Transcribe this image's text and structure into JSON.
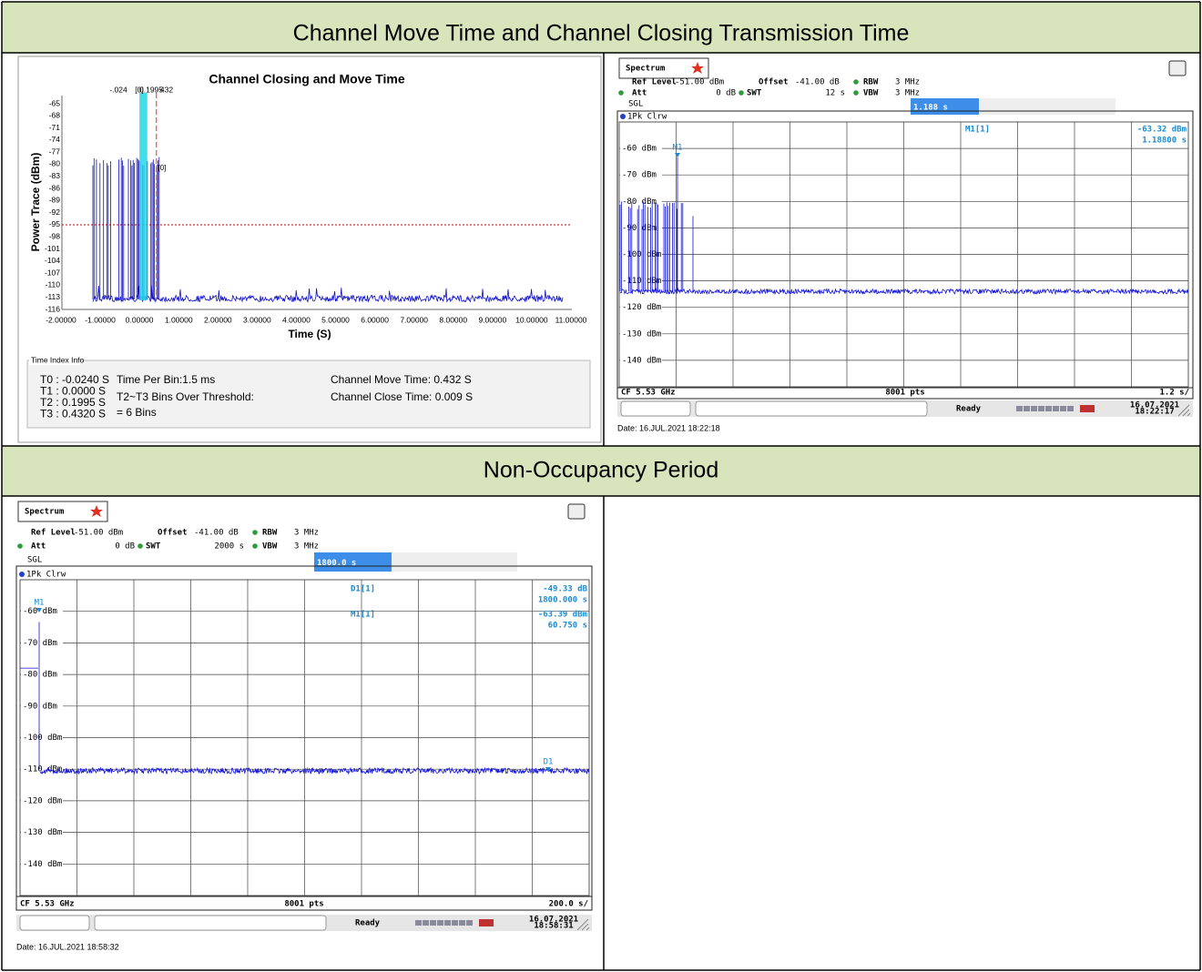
{
  "sections": [
    {
      "title": "Channel Move Time and Channel Closing Transmission Time"
    },
    {
      "title": "Non-Occupancy Period"
    }
  ],
  "closing_plot": {
    "title": "Channel Closing and Move Time",
    "cursor_labels": [
      "-.024",
      "[0]",
      "0.1995",
      "432"
    ],
    "cursor_note": "[0]",
    "y_axis_label": "Power Trace (dBm)",
    "x_axis_label": "Time (S)",
    "yticks": [
      "-65",
      "-68",
      "-71",
      "-74",
      "-77",
      "-80",
      "-83",
      "-86",
      "-89",
      "-92",
      "-95",
      "-98",
      "-101",
      "-104",
      "-107",
      "-110",
      "-113",
      "-116"
    ],
    "xticks": [
      "-2.00000",
      "-1.00000",
      "0.00000",
      "1.00000",
      "2.00000",
      "3.00000",
      "4.00000",
      "5.00000",
      "6.00000",
      "7.00000",
      "8.00000",
      "9.00000",
      "10.00000",
      "11.00000"
    ],
    "info": {
      "legend": "Time Index Info",
      "times": [
        "T0 : -0.0240  S",
        "T1 : 0.0000  S",
        "T2 : 0.1995  S",
        "T3 : 0.4320  S"
      ],
      "bin": "Time Per Bin:1.5 ms",
      "over": "T2~T3 Bins Over Threshold:",
      "bins": "= 6 Bins",
      "move": "Channel Move Time: 0.432  S",
      "close": "Channel Close Time: 0.009  S"
    }
  },
  "spectra": [
    {
      "tab": "Spectrum",
      "ref_label": "Ref Level",
      "ref": "-51.00 dBm",
      "offset_label": "Offset",
      "offset": "-41.00 dB",
      "rbw_label": "RBW",
      "rbw": "3 MHz",
      "att_label": "Att",
      "att": "0 dB",
      "swt_label": "SWT",
      "swt": "12 s",
      "vbw_label": "VBW",
      "vbw": "3 MHz",
      "mode": "SGL",
      "readout": "1.188 s",
      "trace": "1Pk Clrw",
      "marker_table": [
        {
          "name": "M1[1]",
          "lines": [
            "-63.32 dBm",
            "1.18800 s"
          ]
        }
      ],
      "y_labels": [
        "-60 dBm",
        "-70 dBm",
        "-80 dBm",
        "-90 dBm",
        "-100 dBm",
        "-110 dBm",
        "-120 dBm",
        "-130 dBm",
        "-140 dBm"
      ],
      "markers": [
        "M1"
      ],
      "cf": "CF 5.53 GHz",
      "pts": "8001 pts",
      "span": "1.2 s/",
      "status": "Ready",
      "stamp_date": "16.07.2021",
      "stamp_time": "18:22:17",
      "date": "Date: 16.JUL.2021  18:22:18"
    },
    {
      "tab": "Spectrum",
      "ref_label": "Ref Level",
      "ref": "-51.00 dBm",
      "offset_label": "Offset",
      "offset": "-41.00 dB",
      "rbw_label": "RBW",
      "rbw": "3 MHz",
      "att_label": "Att",
      "att": "0 dB",
      "swt_label": "SWT",
      "swt": "2000 s",
      "vbw_label": "VBW",
      "vbw": "3 MHz",
      "mode": "SGL",
      "readout": "1800.0 s",
      "trace": "1Pk Clrw",
      "marker_table": [
        {
          "name": "D1[1]",
          "lines": [
            "-49.33 dB",
            "1800.000 s"
          ]
        },
        {
          "name": "M1[1]",
          "lines": [
            "-63.39 dBm",
            "60.750 s"
          ]
        }
      ],
      "y_labels": [
        "-60 dBm",
        "-70 dBm",
        "-80 dBm",
        "-90 dBm",
        "-100 dBm",
        "-110 dBm",
        "-120 dBm",
        "-130 dBm",
        "-140 dBm"
      ],
      "markers": [
        "M1",
        "D1"
      ],
      "cf": "CF 5.53 GHz",
      "pts": "8001 pts",
      "span": "200.0 s/",
      "status": "Ready",
      "stamp_date": "16.07.2021",
      "stamp_time": "18:58:31",
      "date": "Date: 16.JUL.2021  18:58:32"
    }
  ]
}
